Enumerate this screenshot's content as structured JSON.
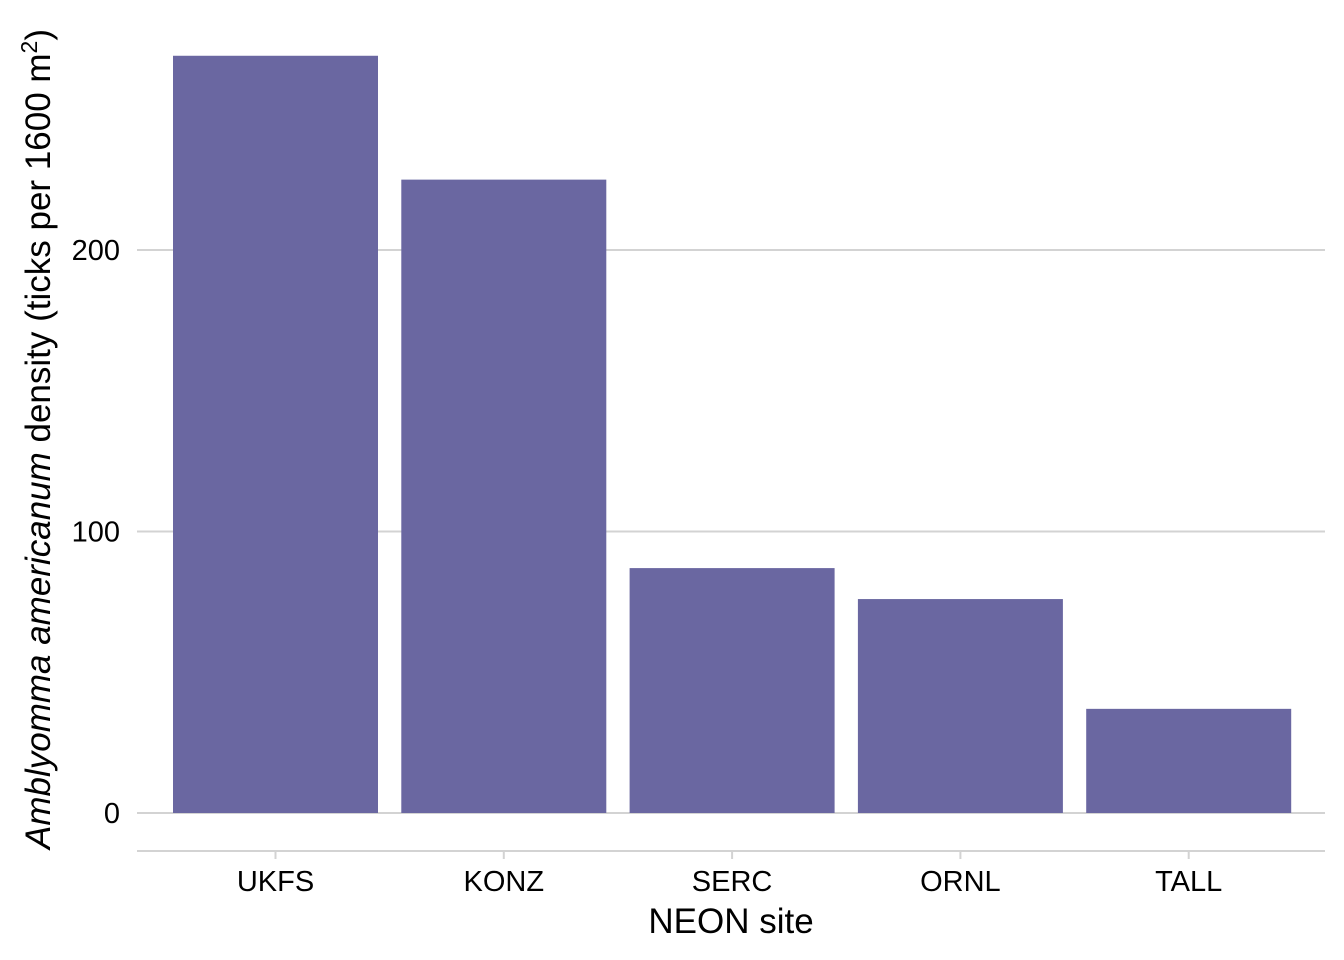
{
  "chart_data": {
    "type": "bar",
    "categories": [
      "UKFS",
      "KONZ",
      "SERC",
      "ORNL",
      "TALL"
    ],
    "values": [
      269,
      225,
      87,
      76,
      37
    ],
    "xlabel": "NEON site",
    "ylabel": {
      "species": "Amblyomma americanum",
      "rest": " density (ticks per 1600 m",
      "superscript": "2",
      "close": ")"
    },
    "yticks": [
      0,
      100,
      200
    ],
    "ylim": [
      -13,
      282
    ],
    "grid": "horizontal major lines",
    "bar_color": "#6a67a1",
    "gridline_color": "#d3d3d3"
  }
}
